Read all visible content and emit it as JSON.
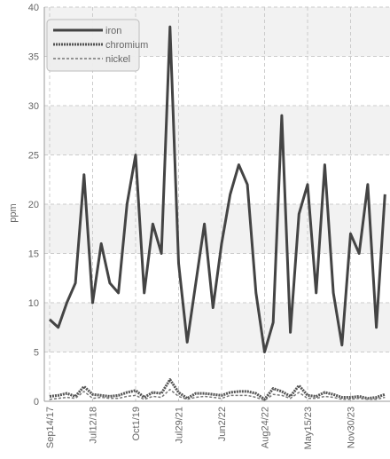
{
  "chart_data": {
    "type": "line",
    "y_label": "ppm",
    "categories": [
      "Sep14/17",
      null,
      null,
      null,
      null,
      "Jul12/18",
      null,
      null,
      null,
      null,
      "Oct1/19",
      null,
      null,
      null,
      null,
      "Jul29/21",
      null,
      null,
      null,
      null,
      "Jun2/22",
      null,
      null,
      null,
      null,
      "Aug24/22",
      null,
      null,
      null,
      null,
      "May15/23",
      null,
      null,
      null,
      null,
      "Nov30/23",
      null,
      null,
      null,
      null
    ],
    "series": [
      {
        "name": "iron",
        "color": "#444444",
        "values": [
          8.3,
          7.5,
          10,
          12,
          23,
          10,
          16,
          12,
          11,
          20,
          25,
          11,
          18,
          15,
          38,
          14,
          6,
          12,
          18,
          9.5,
          16,
          21,
          24,
          22,
          11,
          5,
          8,
          29,
          7,
          19,
          22,
          11,
          24,
          11,
          5.7,
          17,
          15,
          22,
          7.5,
          21
        ]
      },
      {
        "name": "chromium",
        "color": "#555555",
        "values": [
          0.5,
          0.6,
          0.8,
          0.5,
          1.5,
          0.7,
          0.6,
          0.5,
          0.6,
          0.9,
          1.1,
          0.4,
          0.9,
          0.8,
          2.2,
          0.9,
          0.3,
          0.8,
          0.8,
          0.7,
          0.6,
          0.9,
          1.0,
          1.0,
          0.8,
          0.2,
          1.3,
          1.0,
          0.5,
          1.6,
          0.6,
          0.5,
          0.9,
          0.7,
          0.4,
          0.4,
          0.5,
          0.3,
          0.4,
          0.7
        ]
      },
      {
        "name": "nickel",
        "color": "#777777",
        "values": [
          0.2,
          0.3,
          0.4,
          0.3,
          1.0,
          0.3,
          0.4,
          0.3,
          0.3,
          0.5,
          0.6,
          0.2,
          0.5,
          0.4,
          1.2,
          0.5,
          0.2,
          0.4,
          0.5,
          0.4,
          0.3,
          0.6,
          0.6,
          0.6,
          0.4,
          0.1,
          0.7,
          0.6,
          0.3,
          0.9,
          0.3,
          0.3,
          0.5,
          0.4,
          0.2,
          0.2,
          0.3,
          0.2,
          0.2,
          0.4
        ]
      }
    ],
    "ylim": [
      0,
      40
    ],
    "yticks": [
      0,
      5,
      10,
      15,
      20,
      25,
      30,
      35,
      40
    ],
    "grid": true
  }
}
